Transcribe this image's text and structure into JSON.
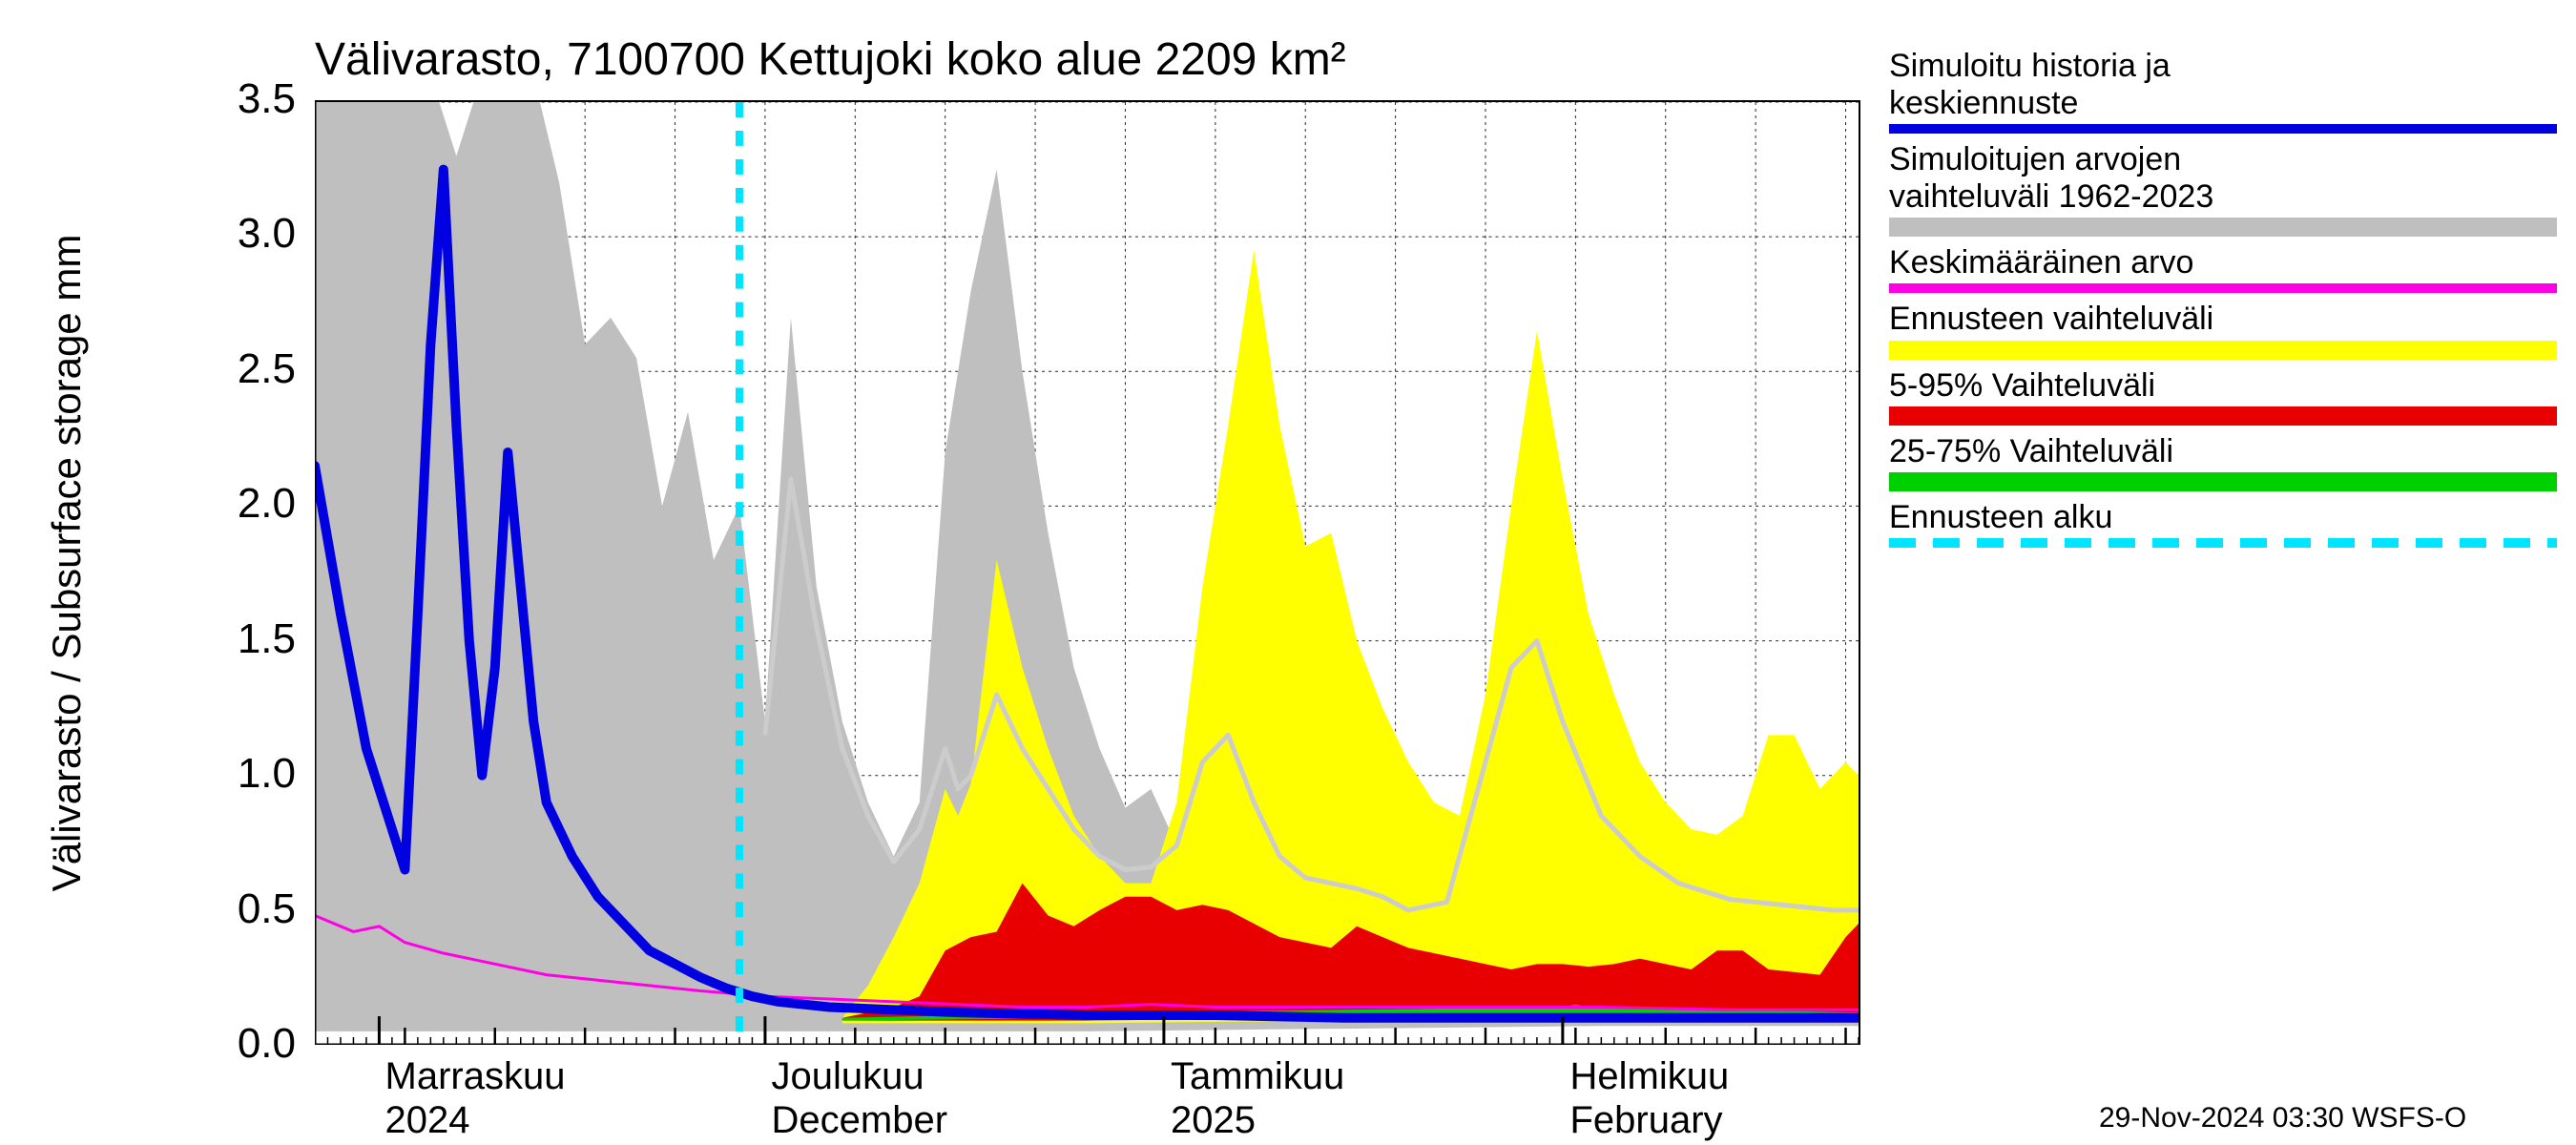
{
  "title": "Välivarasto, 7100700 Kettujoki koko alue 2209 km²",
  "y_axis_label": "Välivarasto / Subsurface storage  mm",
  "footer": "29-Nov-2024 03:30 WSFS-O",
  "chart": {
    "type": "area-line",
    "background_color": "#ffffff",
    "grid_color": "#000000",
    "grid_dash": "3,4",
    "ylim": [
      0.0,
      3.5
    ],
    "ytick_step": 0.5,
    "yticks": [
      "0.0",
      "0.5",
      "1.0",
      "1.5",
      "2.0",
      "2.5",
      "3.0",
      "3.5"
    ],
    "x_domain_days": 120,
    "x_major_ticks": [
      {
        "day": 5,
        "label_top": "Marraskuu",
        "label_bot": "2024"
      },
      {
        "day": 35,
        "label_top": "Joulukuu",
        "label_bot": "December"
      },
      {
        "day": 66,
        "label_top": "Tammikuu",
        "label_bot": "2025"
      },
      {
        "day": 97,
        "label_top": "Helmikuu",
        "label_bot": "February"
      }
    ],
    "x_minor_tick_step": 1,
    "x_weekly_tick_step": 7,
    "forecast_start_day": 33,
    "colors": {
      "sim_history": "#0000e0",
      "gray_range": "#bfbfbf",
      "mean": "#ff00e6",
      "forecast_rng": "#ffff00",
      "p5_95": "#e80000",
      "p25_75": "#00d000",
      "forecast_start": "#00e5ff",
      "gray_mean_line": "#cccccc"
    },
    "line_widths": {
      "sim_history": 10,
      "mean": 3,
      "gray_mean_line": 5,
      "forecast_start": 8
    }
  },
  "legend": [
    {
      "text1": "Simuloitu historia ja",
      "text2": "keskiennuste",
      "type": "line",
      "color": "#0000e0"
    },
    {
      "text1": "Simuloitujen arvojen",
      "text2": "vaihteluväli 1962-2023",
      "type": "block",
      "color": "#bfbfbf"
    },
    {
      "text1": "Keskimääräinen arvo",
      "text2": "",
      "type": "line",
      "color": "#ff00e6"
    },
    {
      "text1": "Ennusteen vaihteluväli",
      "text2": "",
      "type": "block",
      "color": "#ffff00"
    },
    {
      "text1": "5-95% Vaihteluväli",
      "text2": "",
      "type": "block",
      "color": "#e80000"
    },
    {
      "text1": "25-75% Vaihteluväli",
      "text2": "",
      "type": "block",
      "color": "#00d000"
    },
    {
      "text1": "Ennusteen alku",
      "text2": "",
      "type": "dashed",
      "color": "#00e5ff"
    }
  ],
  "series": {
    "gray_upper": [
      [
        0,
        3.6
      ],
      [
        3,
        3.6
      ],
      [
        6,
        3.6
      ],
      [
        9,
        3.6
      ],
      [
        11,
        3.3
      ],
      [
        13,
        3.6
      ],
      [
        15,
        3.6
      ],
      [
        17,
        3.6
      ],
      [
        19,
        3.2
      ],
      [
        21,
        2.6
      ],
      [
        23,
        2.7
      ],
      [
        25,
        2.55
      ],
      [
        27,
        2.0
      ],
      [
        29,
        2.35
      ],
      [
        31,
        1.8
      ],
      [
        33,
        2.0
      ],
      [
        35,
        1.2
      ],
      [
        37,
        2.7
      ],
      [
        39,
        1.7
      ],
      [
        41,
        1.2
      ],
      [
        43,
        0.9
      ],
      [
        45,
        0.7
      ],
      [
        47,
        0.9
      ],
      [
        49,
        2.2
      ],
      [
        51,
        2.8
      ],
      [
        53,
        3.25
      ],
      [
        55,
        2.5
      ],
      [
        57,
        1.9
      ],
      [
        59,
        1.4
      ],
      [
        61,
        1.1
      ],
      [
        63,
        0.88
      ],
      [
        65,
        0.95
      ],
      [
        67,
        0.74
      ],
      [
        69,
        1.05
      ],
      [
        71,
        1.5
      ],
      [
        73,
        0.9
      ],
      [
        75,
        0.65
      ],
      [
        77,
        0.62
      ],
      [
        79,
        0.6
      ],
      [
        81,
        0.58
      ],
      [
        83,
        0.55
      ],
      [
        85,
        0.5
      ],
      [
        88,
        0.54
      ],
      [
        91,
        1.1
      ],
      [
        93,
        1.5
      ],
      [
        95,
        1.3
      ],
      [
        97,
        1.0
      ],
      [
        100,
        0.7
      ],
      [
        103,
        0.6
      ],
      [
        106,
        0.55
      ],
      [
        110,
        0.52
      ],
      [
        114,
        0.5
      ],
      [
        118,
        0.48
      ],
      [
        120,
        0.47
      ]
    ],
    "gray_lower": [
      [
        0,
        0.05
      ],
      [
        20,
        0.05
      ],
      [
        40,
        0.05
      ],
      [
        60,
        0.05
      ],
      [
        80,
        0.06
      ],
      [
        100,
        0.07
      ],
      [
        120,
        0.07
      ]
    ],
    "yellow_upper": [
      [
        41,
        0.1
      ],
      [
        43,
        0.22
      ],
      [
        45,
        0.4
      ],
      [
        47,
        0.6
      ],
      [
        49,
        0.95
      ],
      [
        50,
        0.85
      ],
      [
        51,
        0.97
      ],
      [
        53,
        1.8
      ],
      [
        55,
        1.4
      ],
      [
        57,
        1.1
      ],
      [
        59,
        0.85
      ],
      [
        61,
        0.7
      ],
      [
        63,
        0.6
      ],
      [
        65,
        0.6
      ],
      [
        67,
        0.9
      ],
      [
        69,
        1.7
      ],
      [
        71,
        2.3
      ],
      [
        73,
        2.95
      ],
      [
        75,
        2.3
      ],
      [
        77,
        1.85
      ],
      [
        79,
        1.9
      ],
      [
        81,
        1.5
      ],
      [
        83,
        1.25
      ],
      [
        85,
        1.05
      ],
      [
        87,
        0.9
      ],
      [
        89,
        0.85
      ],
      [
        91,
        1.3
      ],
      [
        93,
        2.0
      ],
      [
        95,
        2.65
      ],
      [
        97,
        2.1
      ],
      [
        99,
        1.6
      ],
      [
        101,
        1.3
      ],
      [
        103,
        1.05
      ],
      [
        105,
        0.9
      ],
      [
        107,
        0.8
      ],
      [
        109,
        0.78
      ],
      [
        111,
        0.85
      ],
      [
        113,
        1.15
      ],
      [
        115,
        1.15
      ],
      [
        117,
        0.95
      ],
      [
        119,
        1.05
      ],
      [
        120,
        1.0
      ]
    ],
    "yellow_lower": [
      [
        41,
        0.08
      ],
      [
        60,
        0.08
      ],
      [
        80,
        0.09
      ],
      [
        100,
        0.09
      ],
      [
        120,
        0.1
      ]
    ],
    "red_upper": [
      [
        41,
        0.1
      ],
      [
        45,
        0.14
      ],
      [
        47,
        0.18
      ],
      [
        49,
        0.35
      ],
      [
        51,
        0.4
      ],
      [
        53,
        0.42
      ],
      [
        55,
        0.6
      ],
      [
        57,
        0.48
      ],
      [
        59,
        0.44
      ],
      [
        61,
        0.5
      ],
      [
        63,
        0.55
      ],
      [
        65,
        0.55
      ],
      [
        67,
        0.5
      ],
      [
        69,
        0.52
      ],
      [
        71,
        0.5
      ],
      [
        73,
        0.45
      ],
      [
        75,
        0.4
      ],
      [
        77,
        0.38
      ],
      [
        79,
        0.36
      ],
      [
        81,
        0.44
      ],
      [
        83,
        0.4
      ],
      [
        85,
        0.36
      ],
      [
        87,
        0.34
      ],
      [
        89,
        0.32
      ],
      [
        91,
        0.3
      ],
      [
        93,
        0.28
      ],
      [
        95,
        0.3
      ],
      [
        97,
        0.3
      ],
      [
        99,
        0.29
      ],
      [
        101,
        0.3
      ],
      [
        103,
        0.32
      ],
      [
        105,
        0.3
      ],
      [
        107,
        0.28
      ],
      [
        109,
        0.35
      ],
      [
        111,
        0.35
      ],
      [
        113,
        0.28
      ],
      [
        115,
        0.27
      ],
      [
        117,
        0.26
      ],
      [
        119,
        0.4
      ],
      [
        120,
        0.45
      ]
    ],
    "red_lower": [
      [
        41,
        0.09
      ],
      [
        60,
        0.09
      ],
      [
        80,
        0.1
      ],
      [
        100,
        0.1
      ],
      [
        120,
        0.1
      ]
    ],
    "green_upper": [
      [
        41,
        0.1
      ],
      [
        60,
        0.12
      ],
      [
        80,
        0.13
      ],
      [
        97,
        0.14
      ],
      [
        98,
        0.15
      ],
      [
        99,
        0.14
      ],
      [
        120,
        0.12
      ]
    ],
    "green_lower": [
      [
        41,
        0.09
      ],
      [
        60,
        0.1
      ],
      [
        80,
        0.1
      ],
      [
        100,
        0.1
      ],
      [
        120,
        0.1
      ]
    ],
    "blue_line": [
      [
        0,
        2.15
      ],
      [
        2,
        1.6
      ],
      [
        4,
        1.1
      ],
      [
        6,
        0.8
      ],
      [
        7,
        0.65
      ],
      [
        8,
        1.6
      ],
      [
        9,
        2.6
      ],
      [
        10,
        3.25
      ],
      [
        11,
        2.3
      ],
      [
        12,
        1.5
      ],
      [
        13,
        1.0
      ],
      [
        14,
        1.4
      ],
      [
        15,
        2.2
      ],
      [
        16,
        1.7
      ],
      [
        17,
        1.2
      ],
      [
        18,
        0.9
      ],
      [
        20,
        0.7
      ],
      [
        22,
        0.55
      ],
      [
        24,
        0.45
      ],
      [
        26,
        0.35
      ],
      [
        28,
        0.3
      ],
      [
        30,
        0.25
      ],
      [
        32,
        0.21
      ],
      [
        34,
        0.18
      ],
      [
        36,
        0.16
      ],
      [
        38,
        0.15
      ],
      [
        40,
        0.14
      ],
      [
        45,
        0.13
      ],
      [
        50,
        0.12
      ],
      [
        60,
        0.11
      ],
      [
        70,
        0.11
      ],
      [
        80,
        0.1
      ],
      [
        90,
        0.1
      ],
      [
        100,
        0.1
      ],
      [
        110,
        0.1
      ],
      [
        120,
        0.1
      ]
    ],
    "magenta_line": [
      [
        0,
        0.48
      ],
      [
        3,
        0.42
      ],
      [
        5,
        0.44
      ],
      [
        7,
        0.38
      ],
      [
        10,
        0.34
      ],
      [
        14,
        0.3
      ],
      [
        18,
        0.26
      ],
      [
        22,
        0.24
      ],
      [
        26,
        0.22
      ],
      [
        30,
        0.2
      ],
      [
        35,
        0.18
      ],
      [
        40,
        0.17
      ],
      [
        50,
        0.15
      ],
      [
        55,
        0.14
      ],
      [
        60,
        0.14
      ],
      [
        65,
        0.15
      ],
      [
        70,
        0.14
      ],
      [
        80,
        0.14
      ],
      [
        90,
        0.14
      ],
      [
        100,
        0.14
      ],
      [
        110,
        0.13
      ],
      [
        120,
        0.13
      ]
    ],
    "gray_mean_line": [
      [
        35,
        1.15
      ],
      [
        37,
        2.1
      ],
      [
        39,
        1.55
      ],
      [
        41,
        1.1
      ],
      [
        43,
        0.85
      ],
      [
        45,
        0.68
      ],
      [
        47,
        0.8
      ],
      [
        49,
        1.1
      ],
      [
        50,
        0.95
      ],
      [
        51,
        1.0
      ],
      [
        53,
        1.3
      ],
      [
        55,
        1.1
      ],
      [
        57,
        0.95
      ],
      [
        59,
        0.8
      ],
      [
        61,
        0.7
      ],
      [
        63,
        0.65
      ],
      [
        65,
        0.66
      ],
      [
        67,
        0.74
      ],
      [
        69,
        1.05
      ],
      [
        71,
        1.15
      ],
      [
        73,
        0.9
      ],
      [
        75,
        0.7
      ],
      [
        77,
        0.62
      ],
      [
        79,
        0.6
      ],
      [
        81,
        0.58
      ],
      [
        83,
        0.55
      ],
      [
        85,
        0.5
      ],
      [
        88,
        0.53
      ],
      [
        91,
        1.05
      ],
      [
        93,
        1.4
      ],
      [
        95,
        1.5
      ],
      [
        97,
        1.2
      ],
      [
        100,
        0.85
      ],
      [
        103,
        0.7
      ],
      [
        106,
        0.6
      ],
      [
        110,
        0.54
      ],
      [
        114,
        0.52
      ],
      [
        118,
        0.5
      ],
      [
        120,
        0.5
      ]
    ]
  }
}
